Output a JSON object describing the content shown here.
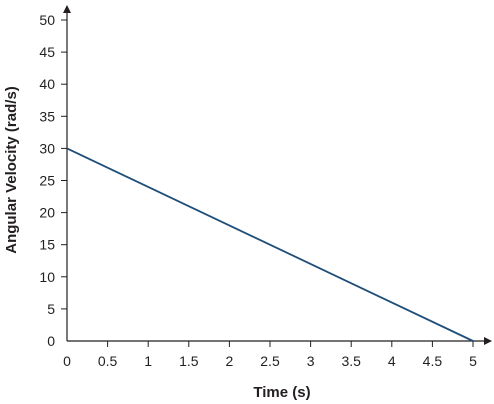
{
  "chart_data": {
    "type": "line",
    "title": "",
    "xlabel": "Time (s)",
    "ylabel": "Angular Velocity (rad/s)",
    "xlim": [
      0,
      5
    ],
    "ylim": [
      0,
      50
    ],
    "xticks": [
      "0",
      "0.5",
      "1",
      "1.5",
      "2",
      "2.5",
      "3",
      "3.5",
      "4",
      "4.5",
      "5"
    ],
    "yticks": [
      "0",
      "5",
      "10",
      "15",
      "20",
      "25",
      "30",
      "35",
      "40",
      "45",
      "50"
    ],
    "grid": false,
    "series": [
      {
        "x": [
          0,
          5
        ],
        "y": [
          30,
          0
        ]
      }
    ],
    "colors": {
      "line": "#1f4e79",
      "axis": "#231f20"
    }
  }
}
